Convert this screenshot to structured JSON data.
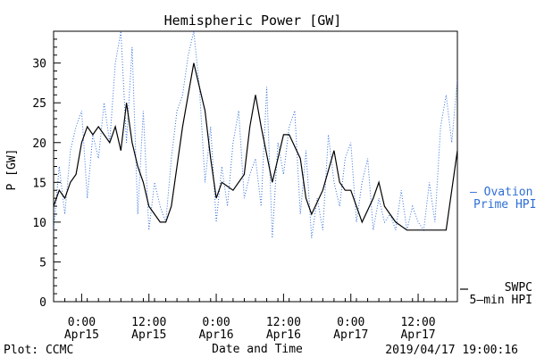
{
  "chart_data": {
    "type": "line",
    "title": "Hemispheric Power [GW]",
    "ylabel": "P [GW]",
    "xlabel": "Date and Time",
    "ylim": [
      0,
      34
    ],
    "xlim": [
      "2019-04-14T19:00",
      "2019-04-17T19:00"
    ],
    "yticks": [
      0,
      5,
      10,
      15,
      20,
      25,
      30
    ],
    "yticks_text": [
      "0",
      "5",
      "10",
      "15",
      "20",
      "25",
      "30"
    ],
    "xticks": [
      {
        "t": "2019-04-15T00:00",
        "time": "0:00",
        "date": "Apr15"
      },
      {
        "t": "2019-04-15T12:00",
        "time": "12:00",
        "date": "Apr15"
      },
      {
        "t": "2019-04-16T00:00",
        "time": "0:00",
        "date": "Apr16"
      },
      {
        "t": "2019-04-16T12:00",
        "time": "12:00",
        "date": "Apr16"
      },
      {
        "t": "2019-04-17T00:00",
        "time": "0:00",
        "date": "Apr17"
      },
      {
        "t": "2019-04-17T12:00",
        "time": "12:00",
        "date": "Apr17"
      }
    ],
    "legend": {
      "ovation_line1": "— Ovation",
      "ovation_line2": "Prime HPI",
      "swpc_line1": "SWPC",
      "swpc_line2": "5—min HPI"
    },
    "series": [
      {
        "name": "SWPC 5-min HPI",
        "color": "#000000",
        "style": "solid",
        "x": [
          "2019-04-14T19:00",
          "2019-04-14T20:00",
          "2019-04-14T21:00",
          "2019-04-14T22:00",
          "2019-04-14T23:00",
          "2019-04-15T00:00",
          "2019-04-15T01:00",
          "2019-04-15T02:00",
          "2019-04-15T03:00",
          "2019-04-15T04:00",
          "2019-04-15T05:00",
          "2019-04-15T06:00",
          "2019-04-15T07:00",
          "2019-04-15T08:00",
          "2019-04-15T09:00",
          "2019-04-15T10:00",
          "2019-04-15T11:00",
          "2019-04-15T12:00",
          "2019-04-15T13:00",
          "2019-04-15T14:00",
          "2019-04-15T15:00",
          "2019-04-15T16:00",
          "2019-04-15T18:00",
          "2019-04-15T20:00",
          "2019-04-15T22:00",
          "2019-04-15T23:00",
          "2019-04-16T00:00",
          "2019-04-16T01:00",
          "2019-04-16T03:00",
          "2019-04-16T05:00",
          "2019-04-16T06:00",
          "2019-04-16T07:00",
          "2019-04-16T08:00",
          "2019-04-16T10:00",
          "2019-04-16T11:00",
          "2019-04-16T12:00",
          "2019-04-16T13:00",
          "2019-04-16T15:00",
          "2019-04-16T16:00",
          "2019-04-16T17:00",
          "2019-04-16T19:00",
          "2019-04-16T21:00",
          "2019-04-16T22:00",
          "2019-04-16T23:00",
          "2019-04-17T00:00",
          "2019-04-17T01:00",
          "2019-04-17T02:00",
          "2019-04-17T04:00",
          "2019-04-17T05:00",
          "2019-04-17T06:00",
          "2019-04-17T08:00",
          "2019-04-17T10:00",
          "2019-04-17T12:00",
          "2019-04-17T14:00",
          "2019-04-17T16:00",
          "2019-04-17T17:00",
          "2019-04-17T18:00",
          "2019-04-17T19:00"
        ],
        "y": [
          12,
          14,
          13,
          15,
          16,
          20,
          22,
          21,
          22,
          21,
          20,
          22,
          19,
          25,
          20,
          17,
          15,
          12,
          11,
          10,
          10,
          12,
          22,
          30,
          24,
          18,
          13,
          15,
          14,
          16,
          22,
          26,
          22,
          15,
          18,
          21,
          21,
          18,
          13,
          11,
          14,
          19,
          15,
          14,
          14,
          12,
          10,
          13,
          15,
          12,
          10,
          9,
          9,
          9,
          9,
          9,
          14,
          19
        ]
      },
      {
        "name": "Ovation Prime HPI",
        "color": "#2f6fd6",
        "style": "dotted",
        "x": [
          "2019-04-14T19:00",
          "2019-04-14T20:00",
          "2019-04-14T21:00",
          "2019-04-14T22:00",
          "2019-04-14T23:00",
          "2019-04-15T00:00",
          "2019-04-15T01:00",
          "2019-04-15T02:00",
          "2019-04-15T03:00",
          "2019-04-15T04:00",
          "2019-04-15T05:00",
          "2019-04-15T06:00",
          "2019-04-15T07:00",
          "2019-04-15T08:00",
          "2019-04-15T09:00",
          "2019-04-15T10:00",
          "2019-04-15T11:00",
          "2019-04-15T12:00",
          "2019-04-15T13:00",
          "2019-04-15T14:00",
          "2019-04-15T15:00",
          "2019-04-15T16:00",
          "2019-04-15T17:00",
          "2019-04-15T18:00",
          "2019-04-15T19:00",
          "2019-04-15T20:00",
          "2019-04-15T21:00",
          "2019-04-15T22:00",
          "2019-04-15T23:00",
          "2019-04-16T00:00",
          "2019-04-16T01:00",
          "2019-04-16T02:00",
          "2019-04-16T03:00",
          "2019-04-16T04:00",
          "2019-04-16T05:00",
          "2019-04-16T06:00",
          "2019-04-16T07:00",
          "2019-04-16T08:00",
          "2019-04-16T09:00",
          "2019-04-16T10:00",
          "2019-04-16T11:00",
          "2019-04-16T12:00",
          "2019-04-16T13:00",
          "2019-04-16T14:00",
          "2019-04-16T15:00",
          "2019-04-16T16:00",
          "2019-04-16T17:00",
          "2019-04-16T18:00",
          "2019-04-16T19:00",
          "2019-04-16T20:00",
          "2019-04-16T21:00",
          "2019-04-16T22:00",
          "2019-04-16T23:00",
          "2019-04-17T00:00",
          "2019-04-17T01:00",
          "2019-04-17T02:00",
          "2019-04-17T03:00",
          "2019-04-17T04:00",
          "2019-04-17T05:00",
          "2019-04-17T06:00",
          "2019-04-17T07:00",
          "2019-04-17T08:00",
          "2019-04-17T09:00",
          "2019-04-17T10:00",
          "2019-04-17T11:00",
          "2019-04-17T12:00",
          "2019-04-17T13:00",
          "2019-04-17T14:00",
          "2019-04-17T15:00",
          "2019-04-17T16:00",
          "2019-04-17T17:00",
          "2019-04-17T18:00",
          "2019-04-17T19:00"
        ],
        "y": [
          9,
          17,
          11,
          19,
          22,
          24,
          13,
          21,
          18,
          25,
          20,
          30,
          34,
          20,
          32,
          11,
          24,
          9,
          15,
          12,
          10,
          18,
          24,
          26,
          31,
          34,
          27,
          15,
          22,
          10,
          17,
          12,
          20,
          24,
          13,
          16,
          18,
          12,
          27,
          8,
          20,
          16,
          22,
          24,
          11,
          19,
          8,
          13,
          9,
          21,
          15,
          12,
          18,
          20,
          10,
          15,
          18,
          9,
          13,
          10,
          11,
          9,
          14,
          9,
          12,
          10,
          9,
          15,
          10,
          22,
          26,
          20,
          28
        ]
      }
    ]
  },
  "footer": {
    "plot_credit": "Plot: CCMC",
    "timestamp": "2019/04/17 19:00:16"
  }
}
